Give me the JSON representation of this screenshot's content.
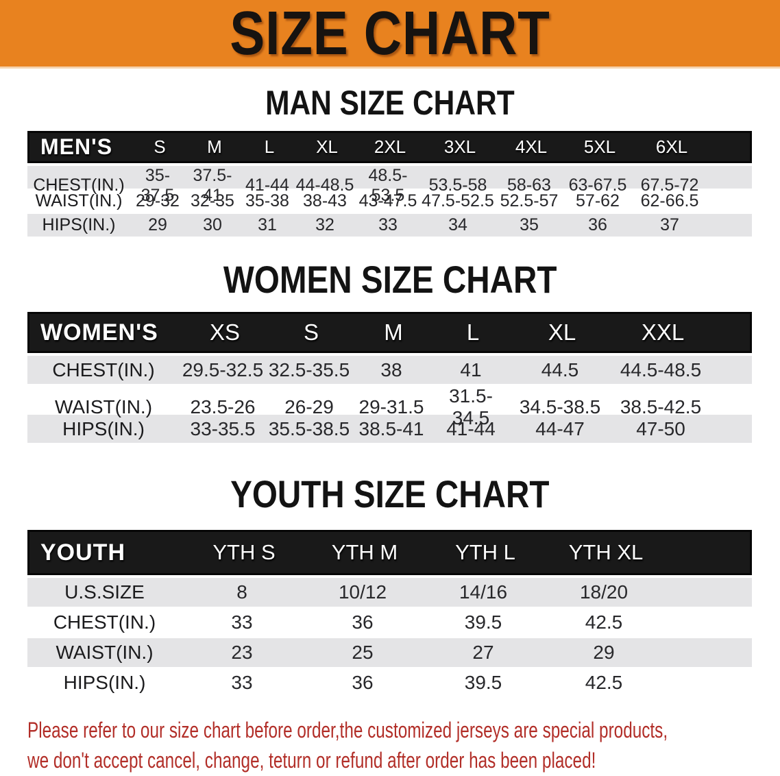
{
  "banner": {
    "title": "SIZE CHART"
  },
  "colors": {
    "banner_bg": "#E8821F",
    "header_bar": "#191919",
    "row_gray": "#E4E4E6",
    "footer_red": "#B22E28"
  },
  "sections": [
    {
      "id": "men",
      "heading": "MAN SIZE CHART",
      "table": {
        "corner": "MEN'S",
        "sizes": [
          "S",
          "M",
          "L",
          "XL",
          "2XL",
          "3XL",
          "4XL",
          "5XL",
          "6XL"
        ],
        "rows": [
          {
            "label": "CHEST(IN.)",
            "values": [
              "35-37.5",
              "37.5-41",
              "41-44",
              "44-48.5",
              "48.5-53.5",
              "53.5-58",
              "58-63",
              "63-67.5",
              "67.5-72"
            ]
          },
          {
            "label": "WAIST(IN.)",
            "values": [
              "29-32",
              "32-35",
              "35-38",
              "38-43",
              "43-47.5",
              "47.5-52.5",
              "52.5-57",
              "57-62",
              "62-66.5"
            ]
          },
          {
            "label": "HIPS(IN.)",
            "values": [
              "29",
              "30",
              "31",
              "32",
              "33",
              "34",
              "35",
              "36",
              "37"
            ]
          }
        ]
      }
    },
    {
      "id": "women",
      "heading": "WOMEN SIZE CHART",
      "table": {
        "corner": "WOMEN'S",
        "sizes": [
          "XS",
          "S",
          "M",
          "L",
          "XL",
          "XXL"
        ],
        "rows": [
          {
            "label": "CHEST(IN.)",
            "values": [
              "29.5-32.5",
              "32.5-35.5",
              "38",
              "41",
              "44.5",
              "44.5-48.5"
            ]
          },
          {
            "label": "WAIST(IN.)",
            "values": [
              "23.5-26",
              "26-29",
              "29-31.5",
              "31.5-34.5",
              "34.5-38.5",
              "38.5-42.5"
            ]
          },
          {
            "label": "HIPS(IN.)",
            "values": [
              "33-35.5",
              "35.5-38.5",
              "38.5-41",
              "41-44",
              "44-47",
              "47-50"
            ]
          }
        ]
      }
    },
    {
      "id": "youth",
      "heading": "YOUTH SIZE CHART",
      "table": {
        "corner": "YOUTH",
        "sizes": [
          "YTH S",
          "YTH M",
          "YTH L",
          "YTH XL"
        ],
        "rows": [
          {
            "label": "U.S.SIZE",
            "values": [
              "8",
              "10/12",
              "14/16",
              "18/20"
            ]
          },
          {
            "label": "CHEST(IN.)",
            "values": [
              "33",
              "36",
              "39.5",
              "42.5"
            ]
          },
          {
            "label": "WAIST(IN.)",
            "values": [
              "23",
              "25",
              "27",
              "29"
            ]
          },
          {
            "label": "HIPS(IN.)",
            "values": [
              "33",
              "36",
              "39.5",
              "42.5"
            ]
          }
        ]
      }
    }
  ],
  "footer": {
    "lines": [
      "Please refer to our size chart before order,the customized jerseys are special products,",
      "we don't accept cancel, change, teturn or refund after order has been placed!"
    ]
  }
}
